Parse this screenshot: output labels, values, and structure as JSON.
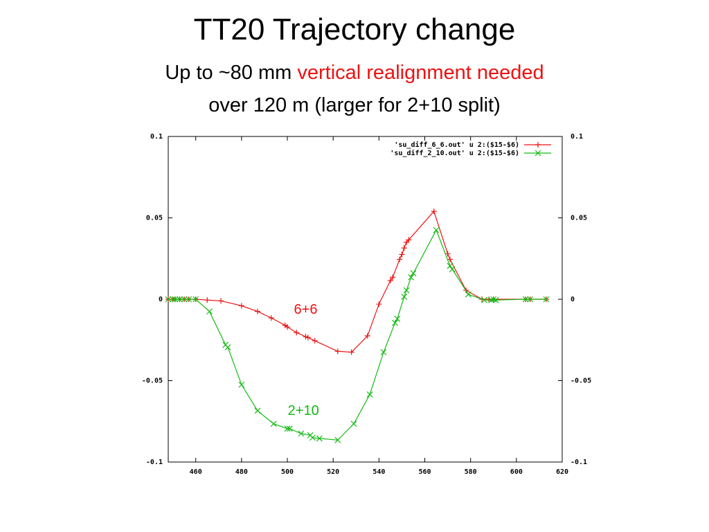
{
  "slide": {
    "title": "TT20 Trajectory change",
    "subtitle_line1_prefix": "Up to ~80 mm ",
    "subtitle_line1_highlight": "vertical realignment needed",
    "subtitle_line2": "over 120 m (larger for 2+10 split)"
  },
  "colors": {
    "highlight": "#ee1111",
    "series_6_6": "#ee1111",
    "series_2_10": "#11bb11"
  },
  "chart_data": {
    "type": "line",
    "title": "",
    "xlabel": "",
    "ylabel": "",
    "xlim": [
      448,
      620
    ],
    "ylim": [
      -0.1,
      0.1
    ],
    "x_ticks": [
      460,
      480,
      500,
      520,
      540,
      560,
      580,
      600,
      620
    ],
    "x_tick_labels": [
      "460",
      "480",
      "500",
      "520",
      "540",
      "560",
      "580",
      "600",
      "620"
    ],
    "y_ticks": [
      0.1,
      0.05,
      0,
      -0.05,
      -0.1
    ],
    "y_tick_labels": [
      "0.1",
      "0.05",
      "0",
      "-0.05",
      "-0.1"
    ],
    "grid": false,
    "legend_position": "top-right",
    "series": [
      {
        "name": "'su_diff_6_6.out' u 2:($15-$6)",
        "marker": "plus",
        "color": "#ee1111",
        "points": [
          [
            448,
            0
          ],
          [
            450,
            0
          ],
          [
            451,
            0
          ],
          [
            453,
            0
          ],
          [
            455,
            0
          ],
          [
            457,
            0
          ],
          [
            460,
            0
          ],
          [
            465,
            -0.0005
          ],
          [
            471,
            -0.001
          ],
          [
            480,
            -0.004
          ],
          [
            487,
            -0.0075
          ],
          [
            493,
            -0.0115
          ],
          [
            499,
            -0.016
          ],
          [
            500,
            -0.017
          ],
          [
            504,
            -0.0205
          ],
          [
            508,
            -0.023
          ],
          [
            509,
            -0.0235
          ],
          [
            512,
            -0.0255
          ],
          [
            522,
            -0.032
          ],
          [
            528,
            -0.0325
          ],
          [
            535,
            -0.0225
          ],
          [
            540,
            -0.003
          ],
          [
            545,
            0.0115
          ],
          [
            546,
            0.0135
          ],
          [
            549,
            0.0245
          ],
          [
            550,
            0.0275
          ],
          [
            551,
            0.0315
          ],
          [
            552,
            0.035
          ],
          [
            553,
            0.0365
          ],
          [
            564,
            0.054
          ],
          [
            570,
            0.028
          ],
          [
            571,
            0.0245
          ],
          [
            578,
            0.0055
          ],
          [
            585,
            0
          ],
          [
            588,
            0
          ],
          [
            590,
            0
          ],
          [
            604,
            0
          ],
          [
            606,
            0
          ],
          [
            613,
            0
          ]
        ]
      },
      {
        "name": "'su_diff_2_10.out' u 2:($15-$6)",
        "marker": "cross",
        "color": "#11bb11",
        "points": [
          [
            448,
            0
          ],
          [
            450,
            0
          ],
          [
            451,
            0
          ],
          [
            453,
            0
          ],
          [
            455,
            0
          ],
          [
            457,
            0
          ],
          [
            460,
            0
          ],
          [
            466,
            -0.0075
          ],
          [
            473,
            -0.028
          ],
          [
            474,
            -0.0295
          ],
          [
            480,
            -0.0525
          ],
          [
            487,
            -0.0685
          ],
          [
            494,
            -0.0765
          ],
          [
            500,
            -0.0795
          ],
          [
            501,
            -0.0795
          ],
          [
            506,
            -0.0825
          ],
          [
            510,
            -0.0835
          ],
          [
            511,
            -0.085
          ],
          [
            514,
            -0.0855
          ],
          [
            522,
            -0.0865
          ],
          [
            529,
            -0.0765
          ],
          [
            536,
            -0.0585
          ],
          [
            542,
            -0.0325
          ],
          [
            547,
            -0.0145
          ],
          [
            548,
            -0.012
          ],
          [
            551,
            0.0015
          ],
          [
            552,
            0.0055
          ],
          [
            554,
            0.0135
          ],
          [
            555,
            0.016
          ],
          [
            565,
            0.0425
          ],
          [
            571,
            0.0205
          ],
          [
            572,
            0.0185
          ],
          [
            579,
            0.003
          ],
          [
            586,
            -0.0005
          ],
          [
            589,
            -0.0005
          ],
          [
            590,
            0
          ],
          [
            591,
            -0.0005
          ],
          [
            604,
            0
          ],
          [
            606,
            0
          ],
          [
            613,
            0
          ]
        ]
      }
    ],
    "annotations": [
      {
        "text": "6+6",
        "x": 508,
        "y": -0.009,
        "color": "#ee1111"
      },
      {
        "text": "2+10",
        "x": 507,
        "y": -0.071,
        "color": "#11bb11"
      }
    ]
  }
}
